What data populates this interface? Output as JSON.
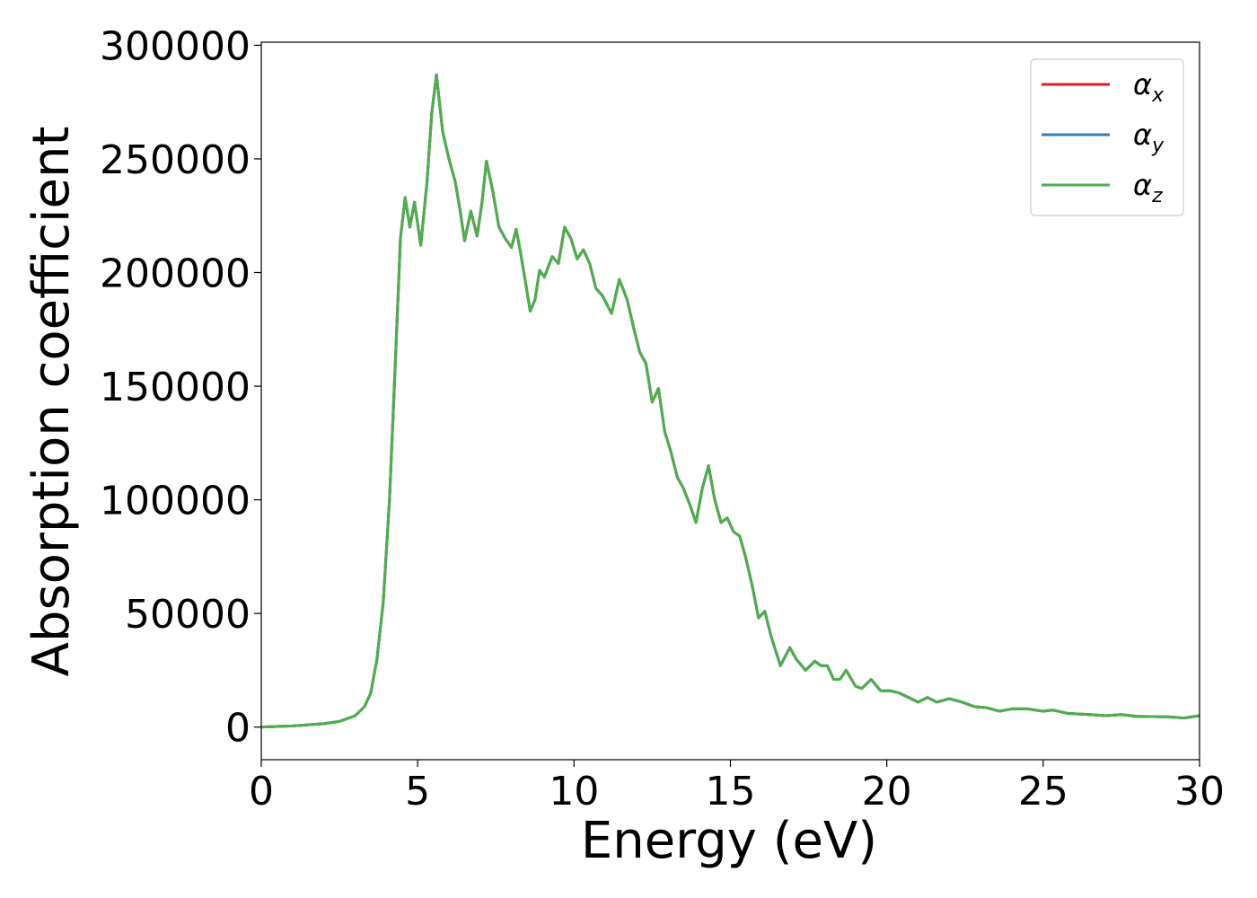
{
  "chart_data": {
    "type": "line",
    "xlabel": "Energy (eV)",
    "ylabel": "Absorption coefficient",
    "xlim": [
      0,
      30
    ],
    "ylim": [
      -14350,
      301350
    ],
    "xticks": [
      0,
      5,
      10,
      15,
      20,
      25,
      30
    ],
    "yticks": [
      0,
      50000,
      100000,
      150000,
      200000,
      250000,
      300000
    ],
    "legend": "upper right",
    "x": [
      0,
      1,
      2,
      2.5,
      3,
      3.3,
      3.5,
      3.7,
      3.9,
      4.1,
      4.3,
      4.45,
      4.6,
      4.75,
      4.9,
      5.1,
      5.3,
      5.45,
      5.6,
      5.8,
      6.0,
      6.2,
      6.35,
      6.5,
      6.7,
      6.9,
      7.05,
      7.2,
      7.4,
      7.6,
      7.8,
      8.0,
      8.15,
      8.3,
      8.6,
      8.75,
      8.9,
      9.05,
      9.3,
      9.5,
      9.7,
      9.9,
      10.1,
      10.3,
      10.5,
      10.7,
      10.9,
      11.2,
      11.45,
      11.7,
      11.9,
      12.1,
      12.3,
      12.5,
      12.7,
      12.9,
      13.1,
      13.3,
      13.5,
      13.7,
      13.9,
      14.1,
      14.3,
      14.5,
      14.7,
      14.9,
      15.1,
      15.3,
      15.5,
      15.7,
      15.9,
      16.1,
      16.3,
      16.6,
      16.9,
      17.1,
      17.4,
      17.7,
      17.9,
      18.1,
      18.3,
      18.5,
      18.7,
      19.0,
      19.2,
      19.5,
      19.8,
      20.1,
      20.4,
      20.7,
      21.0,
      21.3,
      21.6,
      22.0,
      22.4,
      22.8,
      23.2,
      23.6,
      24.0,
      24.5,
      25.0,
      25.3,
      25.8,
      26.5,
      27.0,
      27.5,
      28.0,
      28.5,
      29.0,
      29.5,
      30.0
    ],
    "series": [
      {
        "name": "αx",
        "color": "#e41a1c",
        "values": [
          0,
          500,
          1500,
          2500,
          5000,
          9000,
          15000,
          30000,
          55000,
          100000,
          165000,
          215000,
          233000,
          220000,
          231000,
          212000,
          240000,
          270000,
          287000,
          262000,
          250000,
          240000,
          228000,
          214000,
          227000,
          216000,
          230000,
          249000,
          236000,
          220000,
          215000,
          211000,
          219000,
          208000,
          183000,
          188000,
          201000,
          198000,
          207000,
          204000,
          220000,
          215000,
          206000,
          210000,
          204000,
          193000,
          190000,
          182000,
          197000,
          188000,
          176000,
          165000,
          160000,
          143000,
          149000,
          130000,
          121000,
          110000,
          105000,
          98000,
          90000,
          105000,
          115000,
          100000,
          90000,
          92000,
          86000,
          84000,
          74000,
          62000,
          48000,
          51000,
          40000,
          27000,
          35000,
          30000,
          25000,
          29000,
          27000,
          27000,
          21000,
          21000,
          25000,
          18000,
          17000,
          21000,
          16000,
          16000,
          15000,
          13000,
          11000,
          13000,
          11000,
          12500,
          11000,
          9000,
          8500,
          7000,
          8000,
          8000,
          7000,
          7500,
          6000,
          5500,
          5000,
          5500,
          4700,
          4600,
          4500,
          4000,
          5000
        ]
      },
      {
        "name": "αy",
        "color": "#377eb8",
        "values": [
          0,
          500,
          1500,
          2500,
          5000,
          9000,
          15000,
          30000,
          55000,
          100000,
          165000,
          215000,
          233000,
          220000,
          231000,
          212000,
          240000,
          270000,
          287000,
          262000,
          250000,
          240000,
          228000,
          214000,
          227000,
          216000,
          230000,
          249000,
          236000,
          220000,
          215000,
          211000,
          219000,
          208000,
          183000,
          188000,
          201000,
          198000,
          207000,
          204000,
          220000,
          215000,
          206000,
          210000,
          204000,
          193000,
          190000,
          182000,
          197000,
          188000,
          176000,
          165000,
          160000,
          143000,
          149000,
          130000,
          121000,
          110000,
          105000,
          98000,
          90000,
          105000,
          115000,
          100000,
          90000,
          92000,
          86000,
          84000,
          74000,
          62000,
          48000,
          51000,
          40000,
          27000,
          35000,
          30000,
          25000,
          29000,
          27000,
          27000,
          21000,
          21000,
          25000,
          18000,
          17000,
          21000,
          16000,
          16000,
          15000,
          13000,
          11000,
          13000,
          11000,
          12500,
          11000,
          9000,
          8500,
          7000,
          8000,
          8000,
          7000,
          7500,
          6000,
          5500,
          5000,
          5500,
          4700,
          4600,
          4500,
          4000,
          5000
        ]
      },
      {
        "name": "αz",
        "color": "#4daf4a",
        "values": [
          0,
          500,
          1500,
          2500,
          5000,
          9000,
          15000,
          30000,
          55000,
          100000,
          165000,
          215000,
          233000,
          220000,
          231000,
          212000,
          240000,
          270000,
          287000,
          262000,
          250000,
          240000,
          228000,
          214000,
          227000,
          216000,
          230000,
          249000,
          236000,
          220000,
          215000,
          211000,
          219000,
          208000,
          183000,
          188000,
          201000,
          198000,
          207000,
          204000,
          220000,
          215000,
          206000,
          210000,
          204000,
          193000,
          190000,
          182000,
          197000,
          188000,
          176000,
          165000,
          160000,
          143000,
          149000,
          130000,
          121000,
          110000,
          105000,
          98000,
          90000,
          105000,
          115000,
          100000,
          90000,
          92000,
          86000,
          84000,
          74000,
          62000,
          48000,
          51000,
          40000,
          27000,
          35000,
          30000,
          25000,
          29000,
          27000,
          27000,
          21000,
          21000,
          25000,
          18000,
          17000,
          21000,
          16000,
          16000,
          15000,
          13000,
          11000,
          13000,
          11000,
          12500,
          11000,
          9000,
          8500,
          7000,
          8000,
          8000,
          7000,
          7500,
          6000,
          5500,
          5000,
          5500,
          4700,
          4600,
          4500,
          4000,
          5000
        ]
      }
    ]
  }
}
